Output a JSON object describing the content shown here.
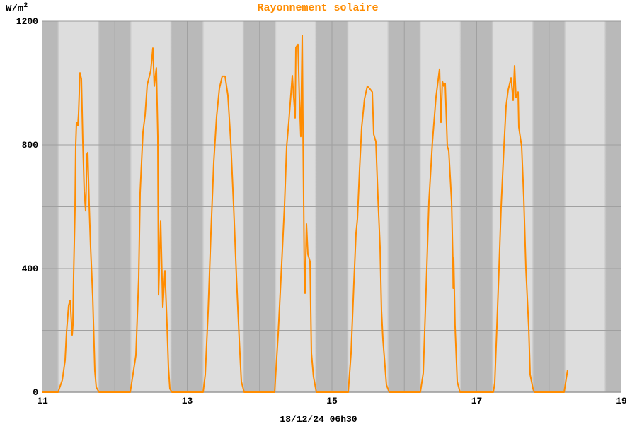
{
  "chart_data": {
    "type": "line",
    "title": "Rayonnement solaire",
    "ylabel": "W/m²",
    "xlabel": "",
    "footer": "18/12/24 06h30",
    "xlim": [
      11,
      19
    ],
    "ylim": [
      0,
      1200
    ],
    "x_ticks": [
      11,
      13,
      15,
      17,
      19
    ],
    "x_tick_labels": [
      "11",
      "13",
      "15",
      "17",
      "19"
    ],
    "y_ticks": [
      0,
      400,
      800,
      1200
    ],
    "y_tick_labels": [
      "0",
      "400",
      "800",
      "1200"
    ],
    "grid": true,
    "night_shading": true,
    "colors": {
      "line": "#ff8c00",
      "title": "#ff8c00",
      "day_band": "#dddddd",
      "night_band": "#b9b9b9",
      "grid": "#a0a0a0"
    },
    "series": [
      {
        "points": [
          [
            11.0,
            0
          ],
          [
            11.215,
            0
          ],
          [
            11.274,
            39
          ],
          [
            11.313,
            103
          ],
          [
            11.333,
            194
          ],
          [
            11.362,
            281
          ],
          [
            11.381,
            297
          ],
          [
            11.391,
            263
          ],
          [
            11.411,
            185
          ],
          [
            11.421,
            217
          ],
          [
            11.43,
            377
          ],
          [
            11.45,
            594
          ],
          [
            11.46,
            800
          ],
          [
            11.469,
            869
          ],
          [
            11.479,
            873
          ],
          [
            11.489,
            862
          ],
          [
            11.499,
            901
          ],
          [
            11.518,
            1033
          ],
          [
            11.538,
            1013
          ],
          [
            11.557,
            811
          ],
          [
            11.577,
            651
          ],
          [
            11.597,
            587
          ],
          [
            11.616,
            770
          ],
          [
            11.626,
            775
          ],
          [
            11.645,
            606
          ],
          [
            11.665,
            469
          ],
          [
            11.694,
            309
          ],
          [
            11.714,
            149
          ],
          [
            11.724,
            69
          ],
          [
            11.743,
            16
          ],
          [
            11.782,
            0
          ],
          [
            12.213,
            0
          ],
          [
            12.291,
            119
          ],
          [
            12.33,
            370
          ],
          [
            12.35,
            645
          ],
          [
            12.389,
            841
          ],
          [
            12.418,
            896
          ],
          [
            12.447,
            994
          ],
          [
            12.496,
            1040
          ],
          [
            12.526,
            1113
          ],
          [
            12.545,
            990
          ],
          [
            12.574,
            1049
          ],
          [
            12.594,
            827
          ],
          [
            12.604,
            315
          ],
          [
            12.633,
            553
          ],
          [
            12.663,
            274
          ],
          [
            12.692,
            393
          ],
          [
            12.721,
            217
          ],
          [
            12.741,
            80
          ],
          [
            12.76,
            11
          ],
          [
            12.79,
            0
          ],
          [
            13.22,
            0
          ],
          [
            13.249,
            57
          ],
          [
            13.289,
            263
          ],
          [
            13.328,
            514
          ],
          [
            13.367,
            743
          ],
          [
            13.406,
            891
          ],
          [
            13.445,
            983
          ],
          [
            13.484,
            1022
          ],
          [
            13.523,
            1022
          ],
          [
            13.562,
            960
          ],
          [
            13.601,
            811
          ],
          [
            13.641,
            606
          ],
          [
            13.68,
            377
          ],
          [
            13.719,
            171
          ],
          [
            13.748,
            34
          ],
          [
            13.787,
            0
          ],
          [
            14.208,
            0
          ],
          [
            14.257,
            187
          ],
          [
            14.306,
            416
          ],
          [
            14.345,
            606
          ],
          [
            14.374,
            795
          ],
          [
            14.403,
            873
          ],
          [
            14.452,
            1024
          ],
          [
            14.462,
            987
          ],
          [
            14.491,
            887
          ],
          [
            14.501,
            1115
          ],
          [
            14.531,
            1125
          ],
          [
            14.55,
            949
          ],
          [
            14.57,
            827
          ],
          [
            14.589,
            1154
          ],
          [
            14.599,
            873
          ],
          [
            14.619,
            377
          ],
          [
            14.628,
            320
          ],
          [
            14.648,
            544
          ],
          [
            14.667,
            446
          ],
          [
            14.697,
            423
          ],
          [
            14.716,
            126
          ],
          [
            14.745,
            50
          ],
          [
            14.785,
            0
          ],
          [
            15.225,
            0
          ],
          [
            15.264,
            126
          ],
          [
            15.303,
            354
          ],
          [
            15.333,
            514
          ],
          [
            15.352,
            560
          ],
          [
            15.381,
            720
          ],
          [
            15.411,
            857
          ],
          [
            15.45,
            949
          ],
          [
            15.489,
            990
          ],
          [
            15.518,
            983
          ],
          [
            15.557,
            971
          ],
          [
            15.577,
            834
          ],
          [
            15.606,
            811
          ],
          [
            15.636,
            629
          ],
          [
            15.665,
            469
          ],
          [
            15.685,
            263
          ],
          [
            15.704,
            171
          ],
          [
            15.734,
            80
          ],
          [
            15.753,
            23
          ],
          [
            15.792,
            0
          ],
          [
            16.222,
            0
          ],
          [
            16.262,
            62
          ],
          [
            16.311,
            400
          ],
          [
            16.34,
            617
          ],
          [
            16.389,
            811
          ],
          [
            16.438,
            955
          ],
          [
            16.487,
            1045
          ],
          [
            16.506,
            873
          ],
          [
            16.526,
            1006
          ],
          [
            16.545,
            990
          ],
          [
            16.565,
            999
          ],
          [
            16.594,
            795
          ],
          [
            16.614,
            782
          ],
          [
            16.653,
            617
          ],
          [
            16.672,
            411
          ],
          [
            16.675,
            336
          ],
          [
            16.682,
            434
          ],
          [
            16.701,
            217
          ],
          [
            16.731,
            34
          ],
          [
            16.77,
            0
          ],
          [
            17.23,
            0
          ],
          [
            17.249,
            30
          ],
          [
            17.279,
            210
          ],
          [
            17.308,
            400
          ],
          [
            17.337,
            599
          ],
          [
            17.377,
            795
          ],
          [
            17.406,
            926
          ],
          [
            17.435,
            978
          ],
          [
            17.474,
            1017
          ],
          [
            17.504,
            944
          ],
          [
            17.523,
            1056
          ],
          [
            17.543,
            953
          ],
          [
            17.572,
            971
          ],
          [
            17.582,
            857
          ],
          [
            17.621,
            795
          ],
          [
            17.65,
            629
          ],
          [
            17.68,
            400
          ],
          [
            17.719,
            210
          ],
          [
            17.738,
            57
          ],
          [
            17.778,
            11
          ],
          [
            17.797,
            0
          ],
          [
            18.208,
            0
          ],
          [
            18.257,
            73
          ]
        ]
      }
    ]
  }
}
